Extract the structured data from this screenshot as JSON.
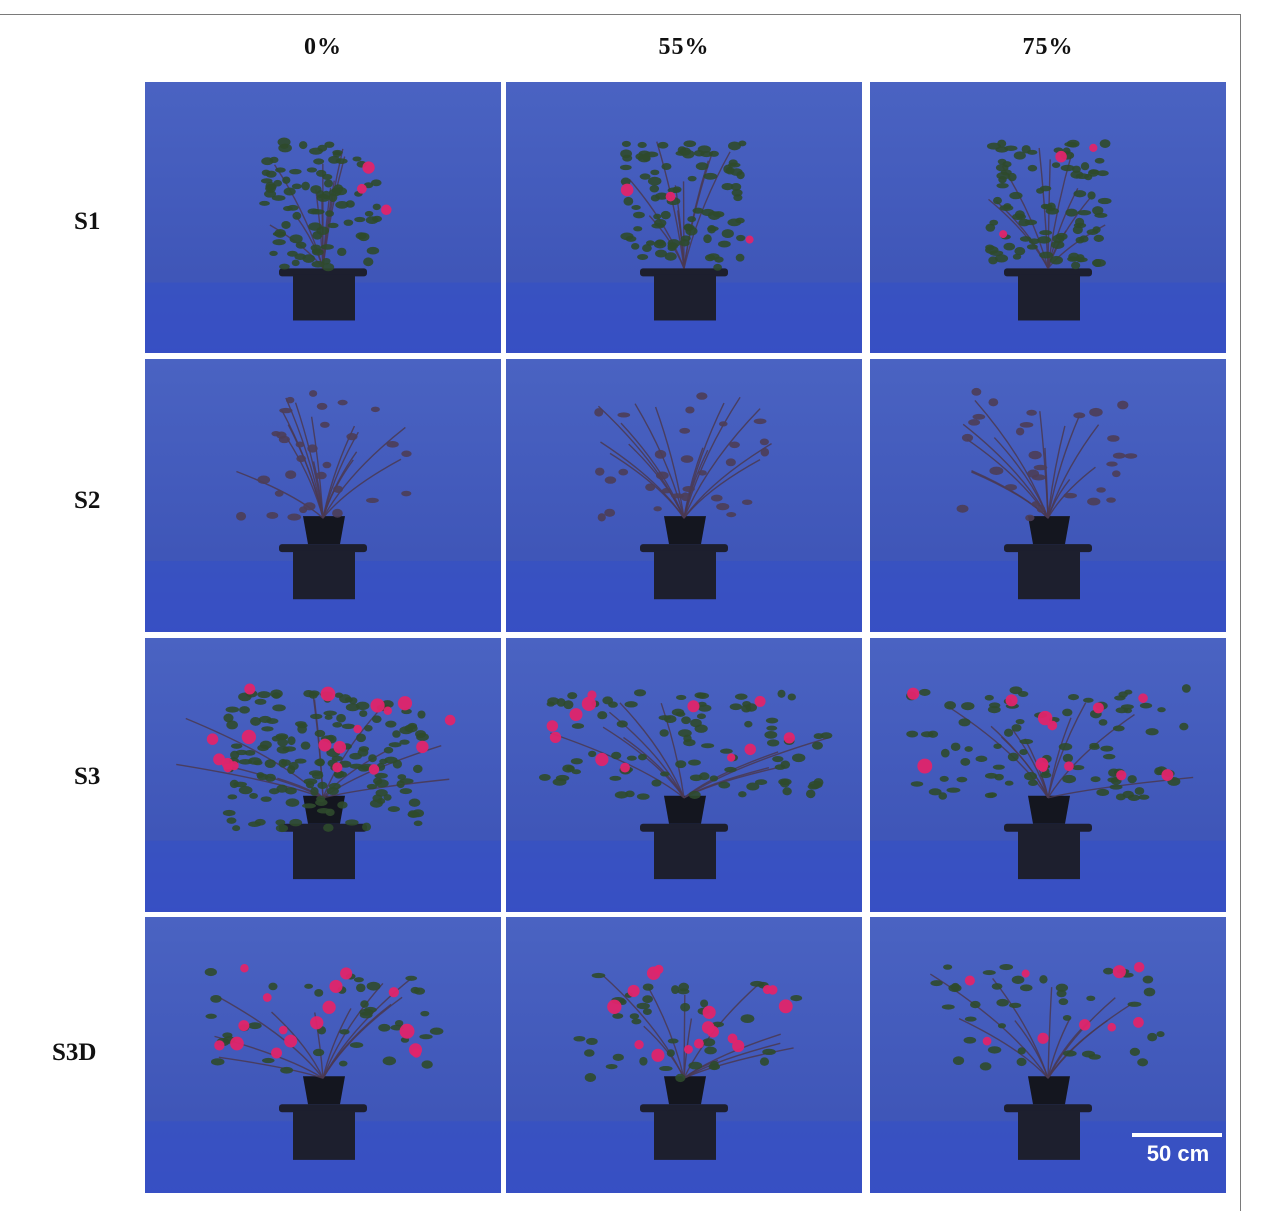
{
  "columns": [
    "0%",
    "55%",
    "75%"
  ],
  "rows": [
    "S1",
    "S2",
    "S3",
    "S3D"
  ],
  "scale_bar": {
    "label": "50 cm"
  },
  "colors": {
    "backdrop": "#3f56b8",
    "pot": "#1d1f2e",
    "leaf": "#2f4a2c",
    "flower": "#e0246a",
    "stem": "#4a3850"
  },
  "panels": [
    {
      "row": "S1",
      "column": "0%",
      "plant": "leafy-rose-with-few-flowers"
    },
    {
      "row": "S1",
      "column": "55%",
      "plant": "leafy-rose-with-few-flowers"
    },
    {
      "row": "S1",
      "column": "75%",
      "plant": "leafy-rose-with-few-flowers"
    },
    {
      "row": "S2",
      "column": "0%",
      "plant": "sparse-branching-rose"
    },
    {
      "row": "S2",
      "column": "55%",
      "plant": "sparse-branching-rose"
    },
    {
      "row": "S2",
      "column": "75%",
      "plant": "sparse-branching-rose"
    },
    {
      "row": "S3",
      "column": "0%",
      "plant": "dense-flowering-rose"
    },
    {
      "row": "S3",
      "column": "55%",
      "plant": "spreading-flowering-rose"
    },
    {
      "row": "S3",
      "column": "75%",
      "plant": "open-flowering-rose"
    },
    {
      "row": "S3D",
      "column": "0%",
      "plant": "flowering-rose-thin-stems"
    },
    {
      "row": "S3D",
      "column": "55%",
      "plant": "flowering-rose-thin-stems"
    },
    {
      "row": "S3D",
      "column": "75%",
      "plant": "flowering-rose-thin-stems"
    }
  ]
}
